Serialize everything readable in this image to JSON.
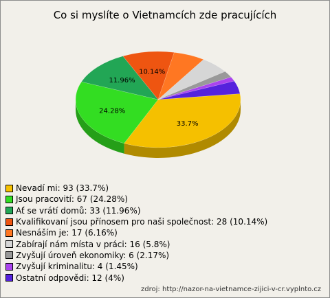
{
  "chart_data": {
    "type": "pie",
    "title": "Co si myslíte o Vietnamcích zde pracujících",
    "slices": [
      {
        "legend": "Nevadí mi: 93 (33.7%)",
        "value": 93,
        "percent": 33.7,
        "label": "33.7%",
        "color": "#f5c000"
      },
      {
        "legend": "Jsou pracovití: 67 (24.28%)",
        "value": 67,
        "percent": 24.28,
        "label": "24.28%",
        "color": "#33dd22"
      },
      {
        "legend": "Ať se vrátí domů: 33 (11.96%)",
        "value": 33,
        "percent": 11.96,
        "label": "11.96%",
        "color": "#22a655"
      },
      {
        "legend": "Kvalifikovaní jsou přínosem pro naši společnost: 28 (10.14%)",
        "value": 28,
        "percent": 10.14,
        "label": "10.14%",
        "color": "#ee5511"
      },
      {
        "legend": "Nesnáším je: 17 (6.16%)",
        "value": 17,
        "percent": 6.16,
        "label": "",
        "color": "#ff7722"
      },
      {
        "legend": "Zabírají nám místa v práci: 16 (5.8%)",
        "value": 16,
        "percent": 5.8,
        "label": "",
        "color": "#d6d6d6"
      },
      {
        "legend": "Zvyšují úroveň ekonomiky: 6 (2.17%)",
        "value": 6,
        "percent": 2.17,
        "label": "",
        "color": "#999999"
      },
      {
        "legend": "Zvyšují kriminalitu: 4 (1.45%)",
        "value": 4,
        "percent": 1.45,
        "label": "",
        "color": "#aa44ee"
      },
      {
        "legend": "Ostatní odpovědi: 12 (4%)",
        "value": 12,
        "percent": 4,
        "label": "",
        "color": "#5522dd"
      }
    ],
    "legend_position": "bottom-left"
  },
  "source": "zdroj: http://nazor-na-vietnamce-zijici-v-cr.vyplnto.cz"
}
